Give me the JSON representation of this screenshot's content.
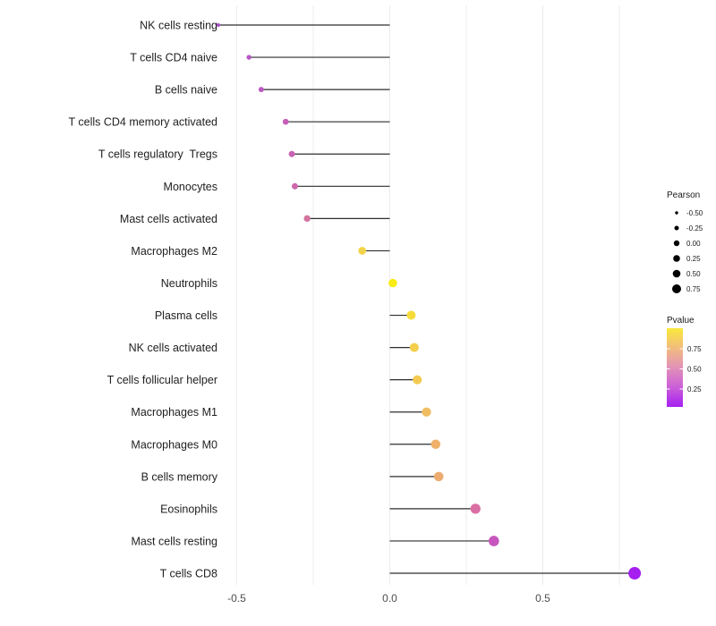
{
  "chart_data": {
    "type": "lollipop",
    "title": "",
    "xlabel": "",
    "ylabel": "",
    "x_axis": {
      "tick_labels": [
        "-0.5",
        "0.0",
        "0.5"
      ],
      "tick_values": [
        -0.5,
        0.0,
        0.5
      ],
      "gridline_values": [
        -0.5,
        -0.25,
        0.0,
        0.25,
        0.5,
        0.75
      ],
      "xlim": [
        -0.62,
        0.88
      ],
      "grid": "vertical-only"
    },
    "points": [
      {
        "label": "NK cells resting",
        "pearson": -0.56,
        "color": "#AB4ECB"
      },
      {
        "label": "T cells CD4 naive",
        "pearson": -0.46,
        "color": "#B655C5"
      },
      {
        "label": "B cells naive",
        "pearson": -0.42,
        "color": "#BC58C2"
      },
      {
        "label": "T cells CD4 memory activated",
        "pearson": -0.34,
        "color": "#C75EB9"
      },
      {
        "label": "T cells regulatory  Tregs",
        "pearson": -0.32,
        "color": "#CA62B2"
      },
      {
        "label": "Monocytes",
        "pearson": -0.31,
        "color": "#CD68AC"
      },
      {
        "label": "Mast cells activated",
        "pearson": -0.27,
        "color": "#D4739D"
      },
      {
        "label": "Macrophages M2",
        "pearson": -0.09,
        "color": "#F2D44B"
      },
      {
        "label": "Neutrophils",
        "pearson": 0.01,
        "color": "#F9EC12"
      },
      {
        "label": "Plasma cells",
        "pearson": 0.07,
        "color": "#F6DC3A"
      },
      {
        "label": "NK cells activated",
        "pearson": 0.08,
        "color": "#F4CF4B"
      },
      {
        "label": "T cells follicular helper",
        "pearson": 0.09,
        "color": "#F3CB52"
      },
      {
        "label": "Macrophages M1",
        "pearson": 0.12,
        "color": "#F0BD62"
      },
      {
        "label": "Macrophages M0",
        "pearson": 0.15,
        "color": "#EFB169"
      },
      {
        "label": "B cells memory",
        "pearson": 0.16,
        "color": "#EDAB6F"
      },
      {
        "label": "Eosinophils",
        "pearson": 0.28,
        "color": "#DA6FA3"
      },
      {
        "label": "Mast cells resting",
        "pearson": 0.34,
        "color": "#C755BE"
      },
      {
        "label": "T cells CD8",
        "pearson": 0.8,
        "color": "#A51FF0"
      }
    ],
    "legend_pearson": {
      "title": "Pearson",
      "entries": [
        {
          "label": "-0.50",
          "radius": 1.7
        },
        {
          "label": "-0.25",
          "radius": 2.5
        },
        {
          "label": "0.00",
          "radius": 3.2
        },
        {
          "label": "0.25",
          "radius": 3.8
        },
        {
          "label": "0.50",
          "radius": 4.3
        },
        {
          "label": "0.75",
          "radius": 5.0
        }
      ],
      "dot_color": "#000000"
    },
    "legend_pvalue": {
      "title": "Pvalue",
      "tick_labels": [
        "0.75",
        "0.50",
        "0.25"
      ],
      "gradient_top_to_bottom": [
        "#F9E93C",
        "#F2BC7E",
        "#E291B8",
        "#CB5FD8",
        "#A520F0"
      ]
    }
  },
  "colors": {
    "background": "#ffffff",
    "gridline": "#ececec",
    "stem": "#2e2e2e",
    "y_label_text": "#212121",
    "x_tick_text": "#4d4d4d",
    "legend_text": "#1a1a1a"
  }
}
